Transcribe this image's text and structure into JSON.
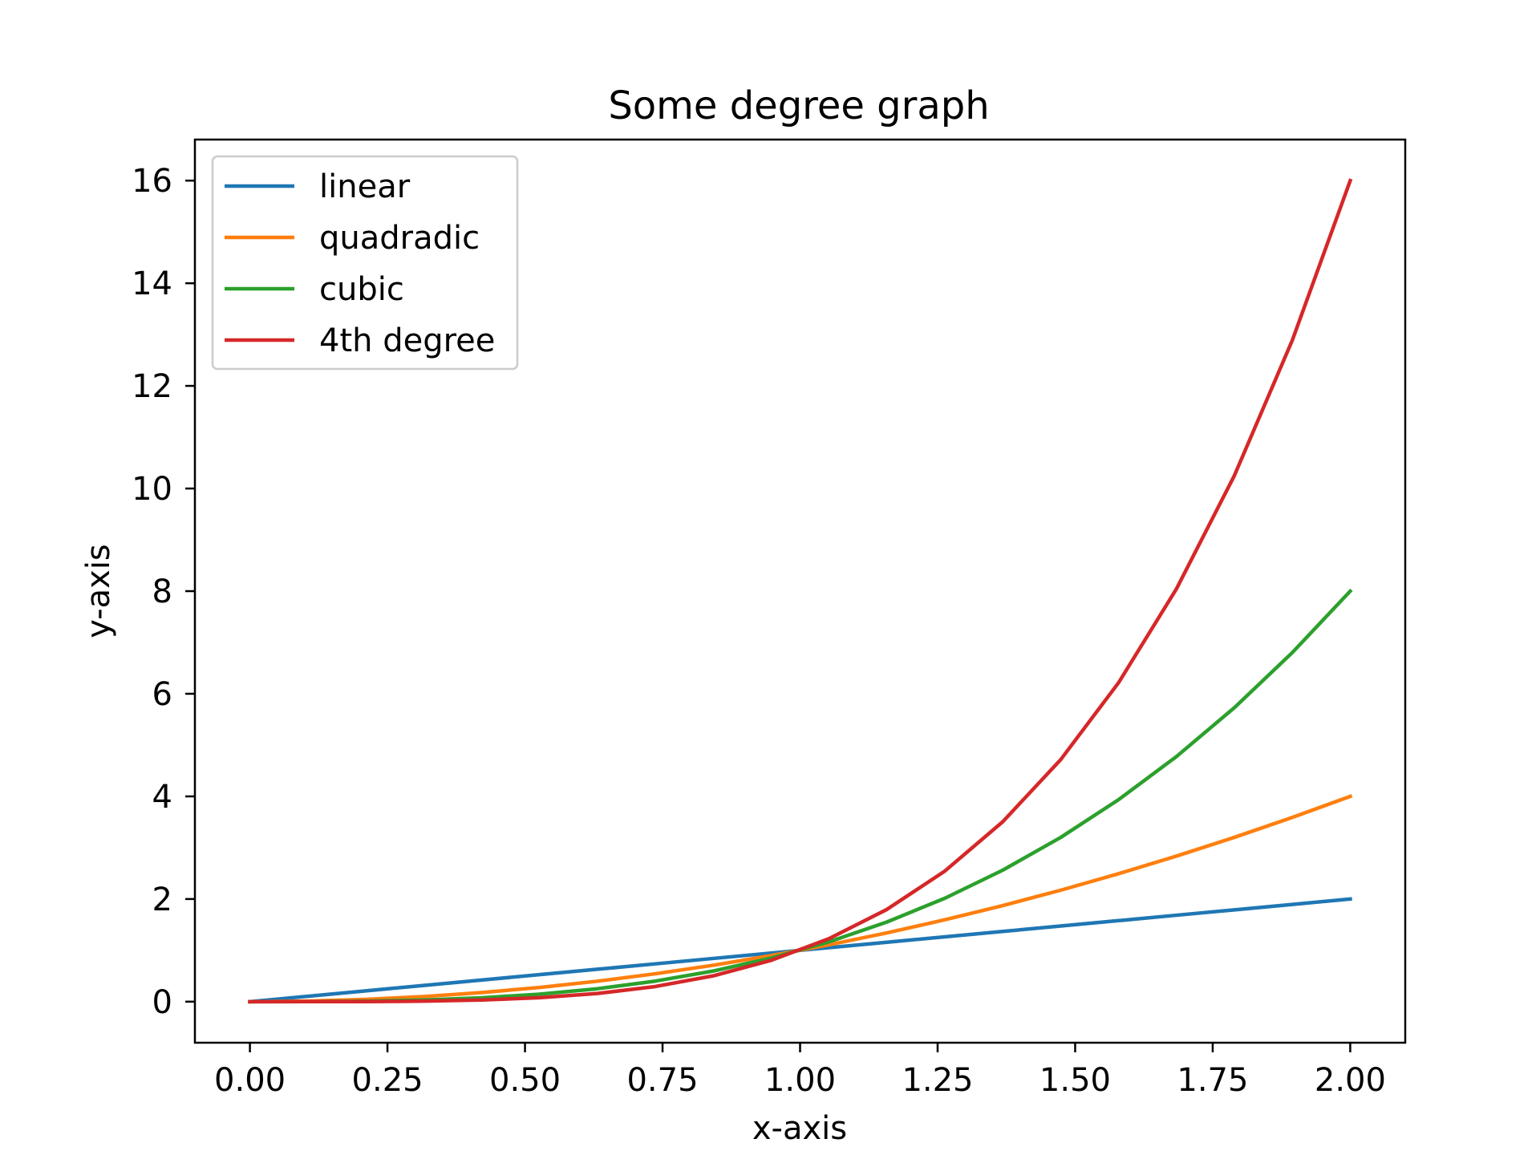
{
  "chart_data": {
    "type": "line",
    "title": "Some degree graph",
    "xlabel": "x-axis",
    "ylabel": "y-axis",
    "xlim": [
      -0.1,
      2.1
    ],
    "ylim": [
      -0.8,
      16.8
    ],
    "xticks": [
      0,
      0.25,
      0.5,
      0.75,
      1.0,
      1.25,
      1.5,
      1.75,
      2.0
    ],
    "xtick_labels": [
      "0.00",
      "0.25",
      "0.50",
      "0.75",
      "1.00",
      "1.25",
      "1.50",
      "1.75",
      "2.00"
    ],
    "yticks": [
      0,
      2,
      4,
      6,
      8,
      10,
      12,
      14,
      16
    ],
    "ytick_labels": [
      "0",
      "2",
      "4",
      "6",
      "8",
      "10",
      "12",
      "14",
      "16"
    ],
    "grid": false,
    "legend_position": "top-left",
    "x": [
      0,
      0.1053,
      0.2105,
      0.3158,
      0.4211,
      0.5263,
      0.6316,
      0.7368,
      0.8421,
      0.9474,
      1.0526,
      1.1579,
      1.2632,
      1.3684,
      1.4737,
      1.5789,
      1.6842,
      1.7895,
      1.8947,
      2.0
    ],
    "series": [
      {
        "name": "linear",
        "color": "#1f77b4",
        "values": [
          0,
          0.1053,
          0.2105,
          0.3158,
          0.4211,
          0.5263,
          0.6316,
          0.7368,
          0.8421,
          0.9474,
          1.0526,
          1.1579,
          1.2632,
          1.3684,
          1.4737,
          1.5789,
          1.6842,
          1.7895,
          1.8947,
          2.0
        ]
      },
      {
        "name": "quadradic",
        "color": "#ff7f0e",
        "values": [
          0,
          0.0111,
          0.0443,
          0.0997,
          0.1773,
          0.277,
          0.3989,
          0.5429,
          0.7091,
          0.8975,
          1.108,
          1.3407,
          1.5956,
          1.8726,
          2.1717,
          2.4931,
          2.8366,
          3.2022,
          3.59,
          4.0
        ]
      },
      {
        "name": "cubic",
        "color": "#2ca02c",
        "values": [
          0,
          0.0012,
          0.0093,
          0.0315,
          0.0746,
          0.1458,
          0.2519,
          0.4001,
          0.5971,
          0.8503,
          1.1664,
          1.5524,
          2.0155,
          2.5625,
          3.2005,
          3.9364,
          4.7773,
          5.7302,
          6.8021,
          8.0
        ]
      },
      {
        "name": "4th degree",
        "color": "#d62728",
        "values": [
          0,
          0.0001,
          0.002,
          0.0099,
          0.0314,
          0.0767,
          0.1591,
          0.2948,
          0.5028,
          0.8055,
          1.2278,
          1.7976,
          2.5459,
          3.5066,
          4.7166,
          6.2154,
          8.0459,
          10.254,
          12.8882,
          16.0
        ]
      }
    ]
  }
}
